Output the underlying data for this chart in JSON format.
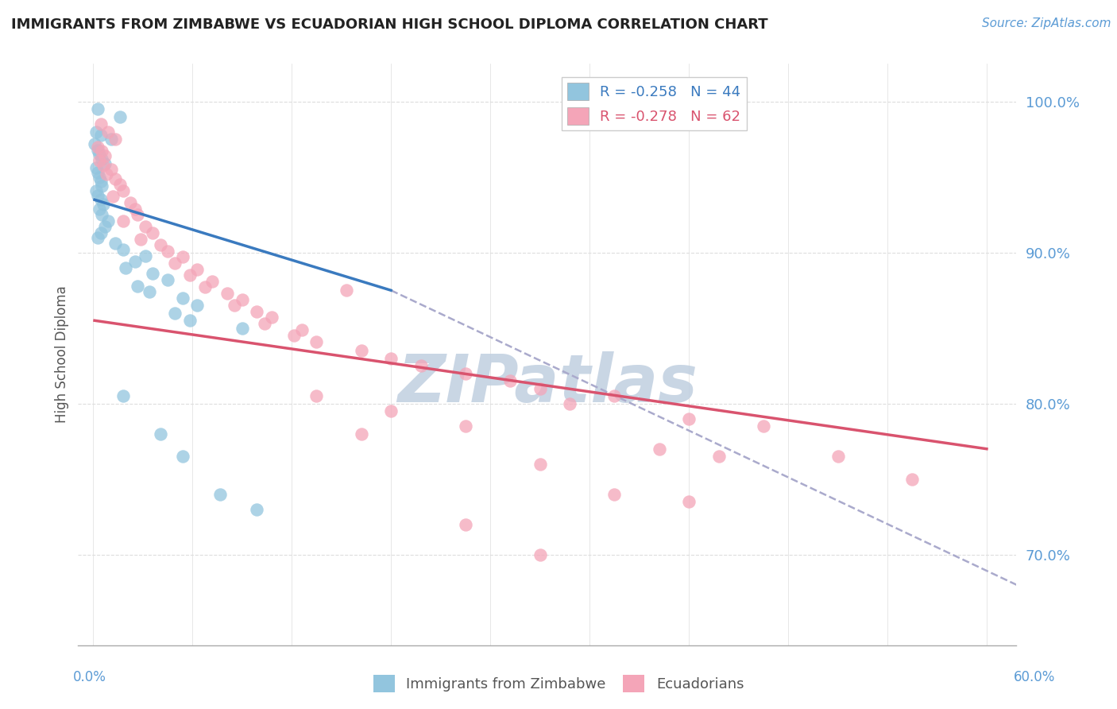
{
  "title": "IMMIGRANTS FROM ZIMBABWE VS ECUADORIAN HIGH SCHOOL DIPLOMA CORRELATION CHART",
  "source": "Source: ZipAtlas.com",
  "ylabel": "High School Diploma",
  "legend_label_blue": "Immigrants from Zimbabwe",
  "legend_label_pink": "Ecuadorians",
  "blue_color": "#92c5de",
  "pink_color": "#f4a5b8",
  "trendline_blue": "#3a7abf",
  "trendline_pink": "#d9536e",
  "trendline_gray": "#aaaacc",
  "blue_scatter": [
    [
      0.3,
      99.5
    ],
    [
      1.8,
      99.0
    ],
    [
      0.2,
      98.0
    ],
    [
      0.5,
      97.8
    ],
    [
      1.2,
      97.5
    ],
    [
      0.1,
      97.2
    ],
    [
      0.3,
      96.8
    ],
    [
      0.4,
      96.5
    ],
    [
      0.6,
      96.2
    ],
    [
      0.8,
      95.9
    ],
    [
      0.2,
      95.6
    ],
    [
      0.3,
      95.3
    ],
    [
      0.4,
      95.0
    ],
    [
      0.5,
      94.7
    ],
    [
      0.6,
      94.4
    ],
    [
      0.2,
      94.1
    ],
    [
      0.3,
      93.8
    ],
    [
      0.5,
      93.5
    ],
    [
      0.7,
      93.2
    ],
    [
      0.4,
      92.9
    ],
    [
      0.6,
      92.5
    ],
    [
      1.0,
      92.1
    ],
    [
      0.8,
      91.7
    ],
    [
      0.5,
      91.3
    ],
    [
      0.3,
      91.0
    ],
    [
      1.5,
      90.6
    ],
    [
      2.0,
      90.2
    ],
    [
      3.5,
      89.8
    ],
    [
      2.8,
      89.4
    ],
    [
      2.2,
      89.0
    ],
    [
      4.0,
      88.6
    ],
    [
      5.0,
      88.2
    ],
    [
      3.0,
      87.8
    ],
    [
      3.8,
      87.4
    ],
    [
      6.0,
      87.0
    ],
    [
      7.0,
      86.5
    ],
    [
      5.5,
      86.0
    ],
    [
      6.5,
      85.5
    ],
    [
      10.0,
      85.0
    ],
    [
      2.0,
      80.5
    ],
    [
      4.5,
      78.0
    ],
    [
      6.0,
      76.5
    ],
    [
      8.5,
      74.0
    ],
    [
      11.0,
      73.0
    ]
  ],
  "pink_scatter": [
    [
      0.5,
      98.5
    ],
    [
      1.0,
      98.0
    ],
    [
      1.5,
      97.5
    ],
    [
      0.3,
      97.0
    ],
    [
      0.6,
      96.7
    ],
    [
      0.8,
      96.4
    ],
    [
      0.4,
      96.1
    ],
    [
      0.7,
      95.8
    ],
    [
      1.2,
      95.5
    ],
    [
      0.9,
      95.2
    ],
    [
      1.5,
      94.9
    ],
    [
      1.8,
      94.5
    ],
    [
      2.0,
      94.1
    ],
    [
      1.3,
      93.7
    ],
    [
      2.5,
      93.3
    ],
    [
      2.8,
      92.9
    ],
    [
      3.0,
      92.5
    ],
    [
      2.0,
      92.1
    ],
    [
      3.5,
      91.7
    ],
    [
      4.0,
      91.3
    ],
    [
      3.2,
      90.9
    ],
    [
      4.5,
      90.5
    ],
    [
      5.0,
      90.1
    ],
    [
      6.0,
      89.7
    ],
    [
      5.5,
      89.3
    ],
    [
      7.0,
      88.9
    ],
    [
      6.5,
      88.5
    ],
    [
      8.0,
      88.1
    ],
    [
      7.5,
      87.7
    ],
    [
      9.0,
      87.3
    ],
    [
      10.0,
      86.9
    ],
    [
      9.5,
      86.5
    ],
    [
      11.0,
      86.1
    ],
    [
      12.0,
      85.7
    ],
    [
      11.5,
      85.3
    ],
    [
      14.0,
      84.9
    ],
    [
      13.5,
      84.5
    ],
    [
      15.0,
      84.1
    ],
    [
      18.0,
      83.5
    ],
    [
      20.0,
      83.0
    ],
    [
      22.0,
      82.5
    ],
    [
      17.0,
      87.5
    ],
    [
      25.0,
      82.0
    ],
    [
      28.0,
      81.5
    ],
    [
      30.0,
      81.0
    ],
    [
      35.0,
      80.5
    ],
    [
      32.0,
      80.0
    ],
    [
      15.0,
      80.5
    ],
    [
      20.0,
      79.5
    ],
    [
      25.0,
      78.5
    ],
    [
      18.0,
      78.0
    ],
    [
      40.0,
      79.0
    ],
    [
      45.0,
      78.5
    ],
    [
      38.0,
      77.0
    ],
    [
      42.0,
      76.5
    ],
    [
      30.0,
      76.0
    ],
    [
      50.0,
      76.5
    ],
    [
      35.0,
      74.0
    ],
    [
      40.0,
      73.5
    ],
    [
      55.0,
      75.0
    ],
    [
      25.0,
      72.0
    ],
    [
      30.0,
      70.0
    ]
  ],
  "xlim": [
    -1.0,
    62.0
  ],
  "ylim": [
    64.0,
    102.5
  ],
  "yticks": [
    70.0,
    80.0,
    90.0,
    100.0
  ],
  "blue_trend_x": [
    0.1,
    20.0
  ],
  "blue_trend_y": [
    93.5,
    87.5
  ],
  "gray_trend_x": [
    20.0,
    62.0
  ],
  "gray_trend_y": [
    87.5,
    68.0
  ],
  "pink_trend_x": [
    0.1,
    60.0
  ],
  "pink_trend_y": [
    85.5,
    77.0
  ],
  "watermark": "ZIPatlas",
  "watermark_color": "#c0cfe0"
}
